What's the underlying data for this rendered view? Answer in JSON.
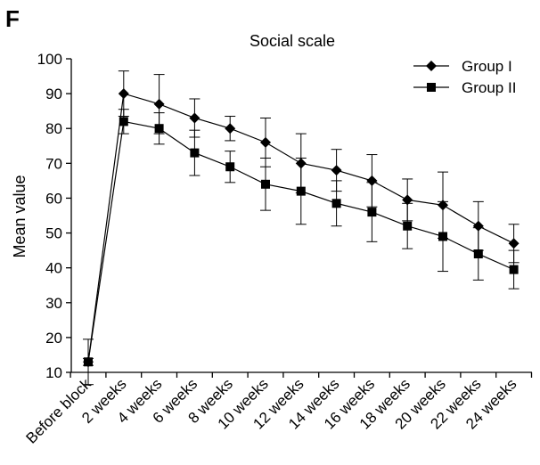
{
  "panel_label": "F",
  "chart_data": {
    "type": "line",
    "title": "Social scale",
    "xlabel": "",
    "ylabel": "Mean value",
    "ylim": [
      10,
      100
    ],
    "yticks": [
      10,
      20,
      30,
      40,
      50,
      60,
      70,
      80,
      90,
      100
    ],
    "categories": [
      "Before block",
      "2 weeks",
      "4 weeks",
      "6 weeks",
      "8 weeks",
      "10 weeks",
      "12 weeks",
      "14 weeks",
      "16 weeks",
      "18 weeks",
      "20 weeks",
      "22 weeks",
      "24 weeks"
    ],
    "legend_position": "top-right",
    "grid": false,
    "series": [
      {
        "name": "Group I",
        "marker": "diamond",
        "values": [
          13,
          90,
          87,
          83,
          80,
          76,
          70,
          68,
          65,
          59.5,
          58,
          52,
          47
        ],
        "errors": [
          6.5,
          6.5,
          8.5,
          5.5,
          3.5,
          7,
          8.5,
          6,
          7.5,
          6,
          9.5,
          7,
          5.5
        ]
      },
      {
        "name": "Group II",
        "marker": "square",
        "values": [
          13,
          82,
          80,
          73,
          69,
          64,
          62,
          58.5,
          56,
          52,
          49,
          44,
          39.5
        ],
        "errors": [
          1,
          3.5,
          4.5,
          6.5,
          4.5,
          7.5,
          9.5,
          6.5,
          8.5,
          6.5,
          10,
          7.5,
          5.5
        ]
      }
    ]
  }
}
